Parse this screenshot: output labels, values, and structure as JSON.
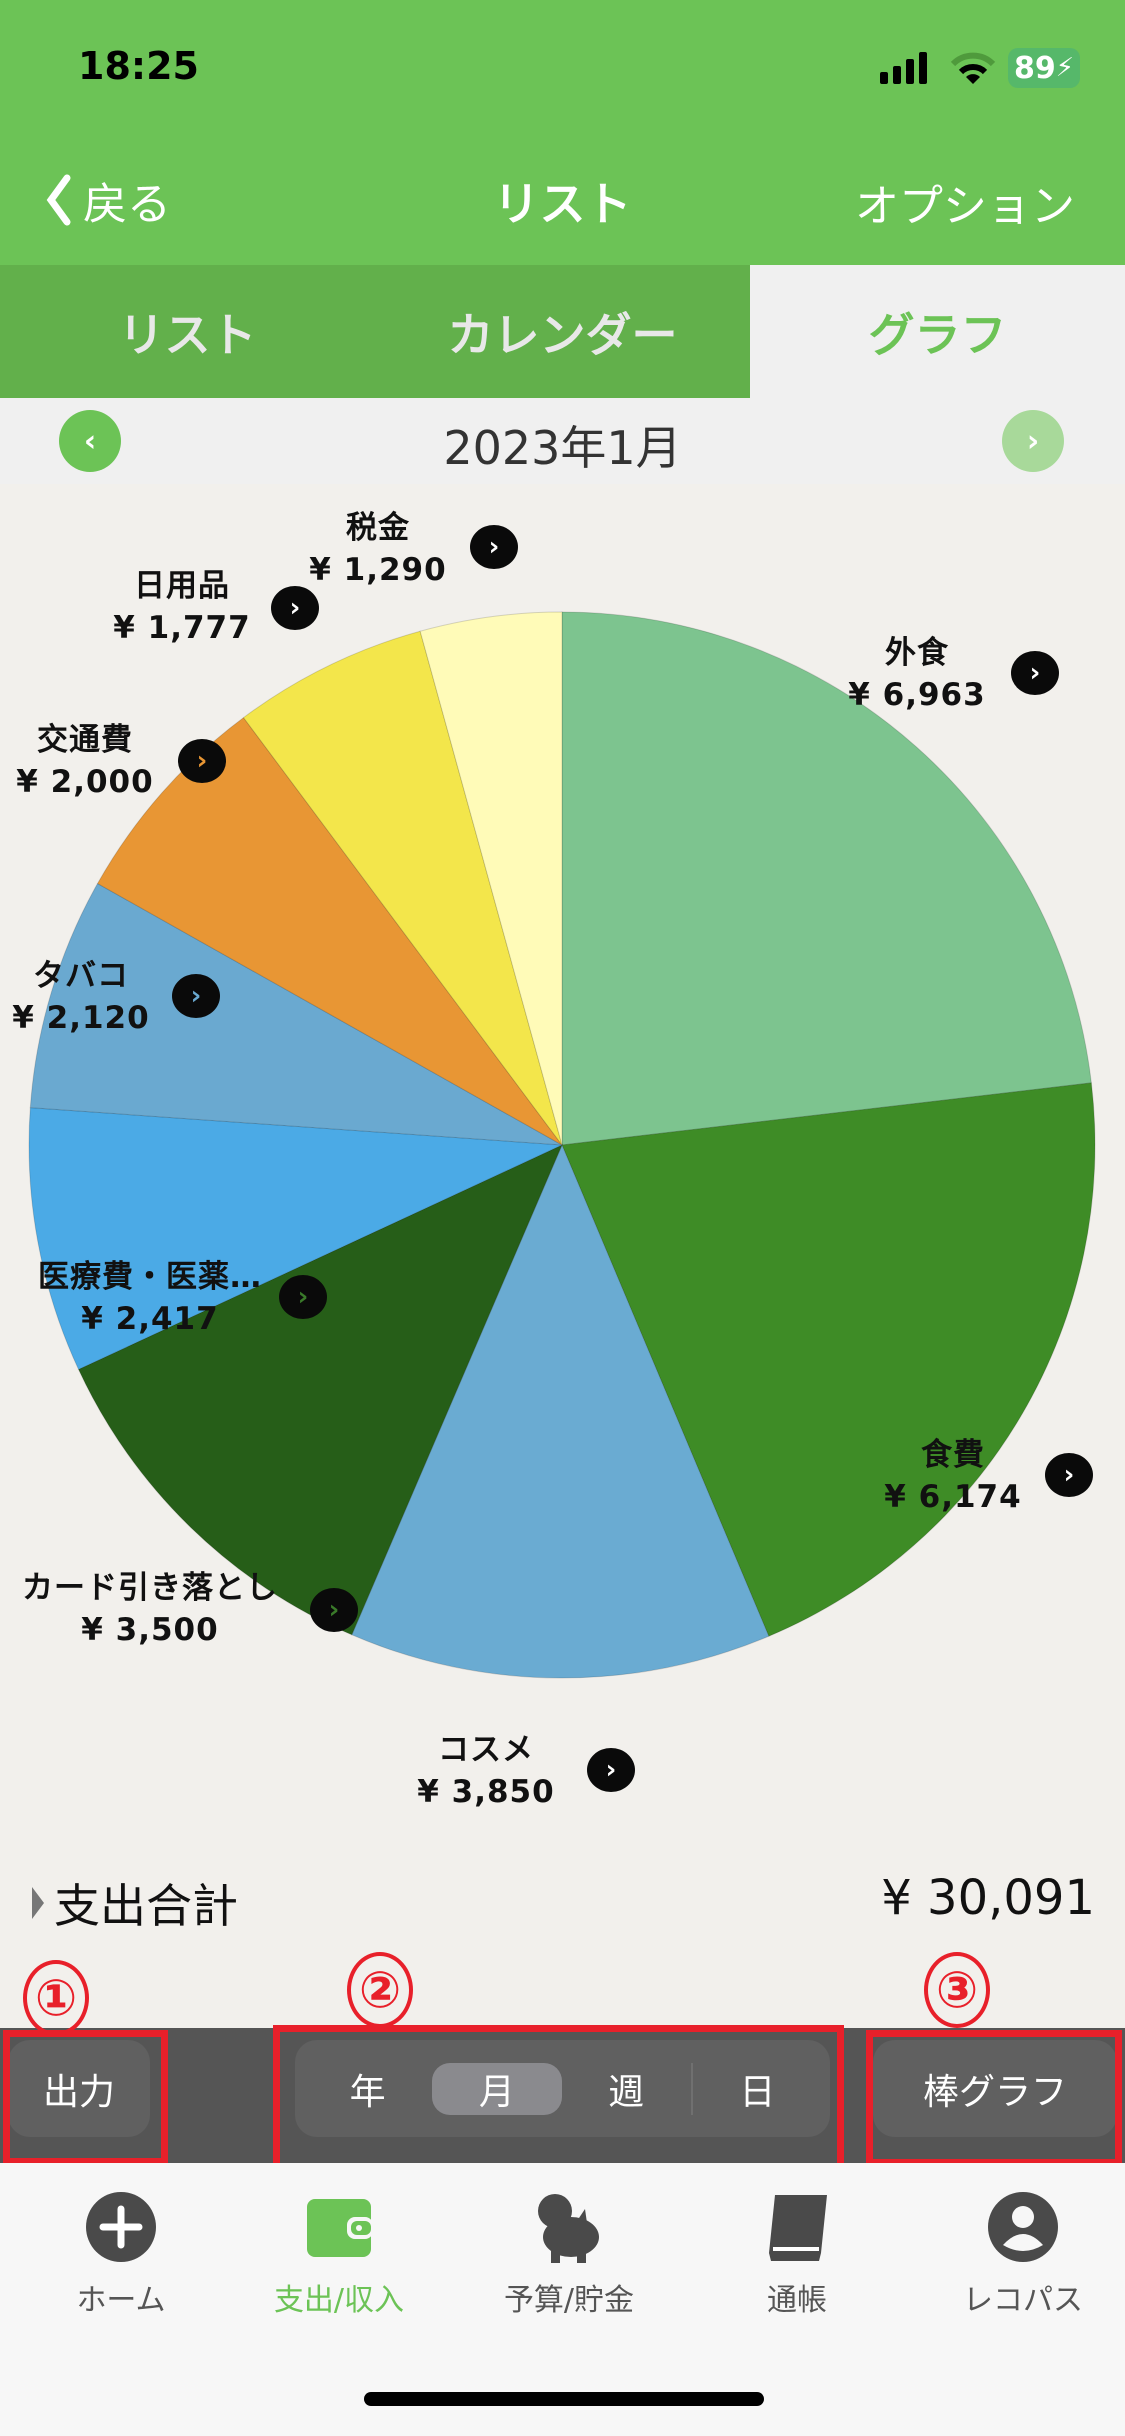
{
  "status_bar": {
    "time": "18:25",
    "battery": "89"
  },
  "nav": {
    "back": "戻る",
    "title": "リスト",
    "option": "オプション"
  },
  "tabs": [
    {
      "label": "リスト"
    },
    {
      "label": "カレンダー"
    },
    {
      "label": "グラフ",
      "active": true
    }
  ],
  "period": {
    "label": "2023年1月"
  },
  "chart_data": {
    "type": "pie",
    "start": "12 o'clock, clockwise",
    "currency": "¥",
    "slices": [
      {
        "label": "外食",
        "value": 6963,
        "display": "¥ 6,963",
        "color": "#7dc48f"
      },
      {
        "label": "食費",
        "value": 6174,
        "display": "¥ 6,174",
        "color": "#3e8c26"
      },
      {
        "label": "コスメ",
        "value": 3850,
        "display": "¥ 3,850",
        "color": "#6aabd2"
      },
      {
        "label": "カード引き落とし",
        "value": 3500,
        "display": "¥ 3,500",
        "color": "#265e18"
      },
      {
        "label": "医療費・医薬…",
        "value": 2417,
        "display": "¥ 2,417",
        "color": "#4baae6"
      },
      {
        "label": "タバコ",
        "value": 2120,
        "display": "¥ 2,120",
        "color": "#6aa9d0"
      },
      {
        "label": "交通費",
        "value": 2000,
        "display": "¥ 2,000",
        "color": "#e89634"
      },
      {
        "label": "日用品",
        "value": 1777,
        "display": "¥ 1,777",
        "color": "#f3e64b"
      },
      {
        "label": "税金",
        "value": 1290,
        "display": "¥ 1,290",
        "color": "#fffbb8"
      }
    ]
  },
  "total": {
    "label": "支出合計",
    "value": "¥ 30,091"
  },
  "annotations": [
    "①",
    "②",
    "③"
  ],
  "toolbar": {
    "export": "出力",
    "segments": [
      "年",
      "月",
      "週",
      "日"
    ],
    "selected": "月",
    "chart_toggle": "棒グラフ"
  },
  "tabbar": [
    {
      "label": "ホーム",
      "icon": "plus-circle-icon"
    },
    {
      "label": "支出/収入",
      "icon": "wallet-icon",
      "active": true
    },
    {
      "label": "予算/貯金",
      "icon": "piggy-bank-icon"
    },
    {
      "label": "通帳",
      "icon": "book-icon"
    },
    {
      "label": "レコパス",
      "icon": "user-circle-icon"
    }
  ],
  "colors": {
    "brand": "#6cc356",
    "toolbar": "#555555",
    "annotation": "#e8202a"
  }
}
